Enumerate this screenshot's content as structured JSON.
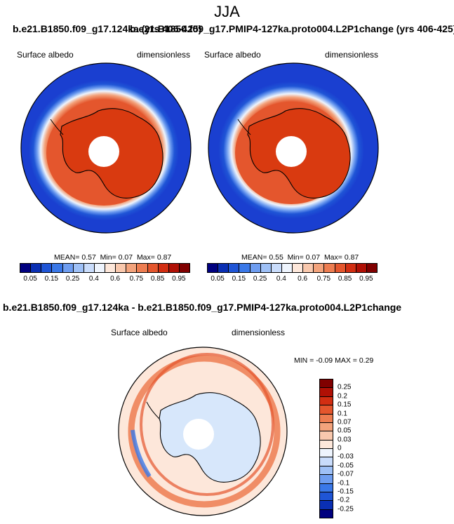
{
  "season": "JJA",
  "top_titles": {
    "left": "b.e21.B1850.f09_g17.124ka (yrs 406-425)",
    "right": "b.e21.B1850.f09_g17.PMIP4-127ka.proto004.L2P1change (yrs 406-425)"
  },
  "panels": [
    {
      "variable": "Surface albedo",
      "units": "dimensionless",
      "stats": {
        "mean_label": "MEAN=",
        "mean": "0.57",
        "min_label": "Min=",
        "min": "0.07",
        "max_label": "Max=",
        "max": "0.87"
      }
    },
    {
      "variable": "Surface albedo",
      "units": "dimensionless",
      "stats": {
        "mean_label": "MEAN=",
        "mean": "0.55",
        "min_label": "Min=",
        "min": "0.07",
        "max_label": "Max=",
        "max": "0.87"
      }
    }
  ],
  "diff_panel": {
    "title": "b.e21.B1850.f09_g17.124ka - b.e21.B1850.f09_g17.PMIP4-127ka.proto004.L2P1change",
    "variable": "Surface albedo",
    "units": "dimensionless",
    "stats": {
      "min_label": "MIN =",
      "min": "-0.09",
      "max_label": "MAX =",
      "max": "0.29"
    }
  },
  "colors": {
    "albedo_scale": [
      "#00007f",
      "#0a2fb3",
      "#1f55d6",
      "#3a78e8",
      "#6e9df0",
      "#9ec0f6",
      "#c9dcfb",
      "#eef4fd",
      "#fde7da",
      "#f9c8ad",
      "#f3a37c",
      "#ed7d51",
      "#e4562d",
      "#d22e12",
      "#b01005",
      "#800000"
    ],
    "diff_scale": [
      "#00007f",
      "#0a2fb3",
      "#1f55d6",
      "#3a78e8",
      "#6e9df0",
      "#9ec0f6",
      "#c9dcfb",
      "#eef4fd",
      "#fde7da",
      "#f9c8ad",
      "#f3a37c",
      "#ed7d51",
      "#e4562d",
      "#d22e12",
      "#b01005",
      "#800000"
    ],
    "ocean_open": "#1a3fd0",
    "sea_ice": "#e4501f",
    "antarctica": "#d93a10"
  },
  "chart_data": [
    {
      "type": "heatmap",
      "projection": "south polar stereographic",
      "title": "b.e21.B1850.f09_g17.124ka (yrs 406-425)",
      "variable": "Surface albedo",
      "units": "dimensionless",
      "colorbar_ticks": [
        "0.05",
        "0.15",
        "0.25",
        "0.4",
        "0.6",
        "0.75",
        "0.85",
        "0.95"
      ],
      "colorbar_levels": [
        0.05,
        0.1,
        0.15,
        0.2,
        0.25,
        0.3,
        0.4,
        0.5,
        0.6,
        0.7,
        0.75,
        0.8,
        0.85,
        0.9,
        0.95
      ],
      "mean": 0.57,
      "min": 0.07,
      "max": 0.87
    },
    {
      "type": "heatmap",
      "projection": "south polar stereographic",
      "title": "b.e21.B1850.f09_g17.PMIP4-127ka.proto004.L2P1change (yrs 406-425)",
      "variable": "Surface albedo",
      "units": "dimensionless",
      "colorbar_ticks": [
        "0.05",
        "0.15",
        "0.25",
        "0.4",
        "0.6",
        "0.75",
        "0.85",
        "0.95"
      ],
      "colorbar_levels": [
        0.05,
        0.1,
        0.15,
        0.2,
        0.25,
        0.3,
        0.4,
        0.5,
        0.6,
        0.7,
        0.75,
        0.8,
        0.85,
        0.9,
        0.95
      ],
      "mean": 0.55,
      "min": 0.07,
      "max": 0.87
    },
    {
      "type": "heatmap",
      "projection": "south polar stereographic",
      "title": "b.e21.B1850.f09_g17.124ka - b.e21.B1850.f09_g17.PMIP4-127ka.proto004.L2P1change",
      "variable": "Surface albedo",
      "units": "dimensionless",
      "colorbar_ticks": [
        "0.25",
        "0.2",
        "0.15",
        "0.1",
        "0.07",
        "0.05",
        "0.03",
        "0",
        "-0.03",
        "-0.05",
        "-0.07",
        "-0.1",
        "-0.15",
        "-0.2",
        "-0.25"
      ],
      "min": -0.09,
      "max": 0.29
    }
  ]
}
